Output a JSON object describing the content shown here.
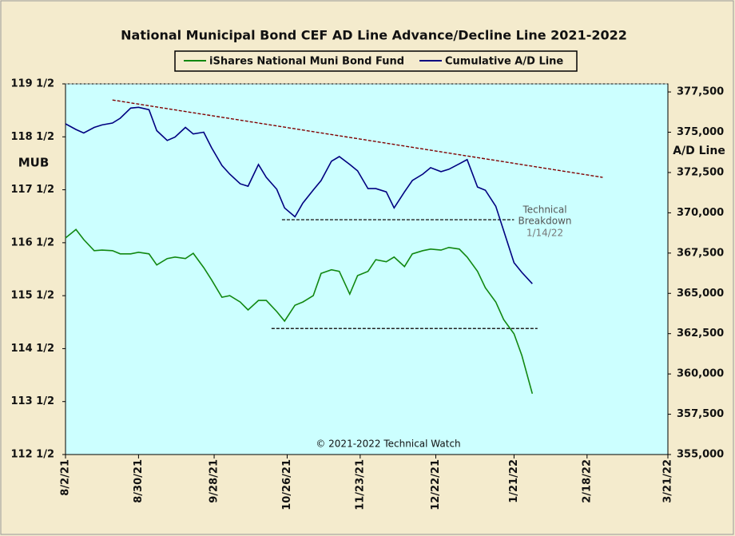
{
  "chart_data": {
    "type": "line",
    "title": "National Municipal Bond CEF AD Line Advance/Decline Line 2021-2022",
    "y_label": "MUB",
    "y2_label": "A/D Line",
    "annotations": [
      "Technical",
      "Breakdown",
      "1/14/22"
    ],
    "footer": "© 2021-2022 Technical Watch",
    "x": [
      "2021-08-02",
      "2021-08-06",
      "2021-08-09",
      "2021-08-13",
      "2021-08-16",
      "2021-08-20",
      "2021-08-23",
      "2021-08-27",
      "2021-08-30",
      "2021-09-03",
      "2021-09-06",
      "2021-09-10",
      "2021-09-13",
      "2021-09-17",
      "2021-09-20",
      "2021-09-24",
      "2021-09-27",
      "2021-10-01",
      "2021-10-04",
      "2021-10-08",
      "2021-10-11",
      "2021-10-15",
      "2021-10-18",
      "2021-10-22",
      "2021-10-25",
      "2021-10-29",
      "2021-11-01",
      "2021-11-05",
      "2021-11-08",
      "2021-11-12",
      "2021-11-15",
      "2021-11-19",
      "2021-11-22",
      "2021-11-26",
      "2021-11-29",
      "2021-12-03",
      "2021-12-06",
      "2021-12-10",
      "2021-12-13",
      "2021-12-17",
      "2021-12-20",
      "2021-12-24",
      "2021-12-27",
      "2021-12-31",
      "2022-01-03",
      "2022-01-07",
      "2022-01-10",
      "2022-01-14",
      "2022-01-17",
      "2022-01-21",
      "2022-01-24",
      "2022-01-28"
    ],
    "series": [
      {
        "name": "iShares National Muni Bond Fund",
        "color": "#118811",
        "axis": "y",
        "values": [
          116.59,
          116.75,
          116.56,
          116.35,
          116.36,
          116.35,
          116.29,
          116.29,
          116.32,
          116.29,
          116.08,
          116.2,
          116.23,
          116.2,
          116.3,
          116.03,
          115.8,
          115.47,
          115.5,
          115.38,
          115.23,
          115.41,
          115.41,
          115.2,
          115.02,
          115.32,
          115.38,
          115.5,
          115.92,
          115.99,
          115.96,
          115.53,
          115.88,
          115.96,
          116.18,
          116.14,
          116.23,
          116.05,
          116.29,
          116.35,
          116.38,
          116.36,
          116.41,
          116.38,
          116.23,
          115.96,
          115.65,
          115.38,
          115.05,
          114.78,
          114.37,
          113.65
        ]
      },
      {
        "name": "Cumulative A/D Line",
        "color": "#000080",
        "axis": "y2",
        "values": [
          375520,
          375170,
          374950,
          375300,
          375450,
          375570,
          375870,
          376500,
          376550,
          376400,
          375100,
          374490,
          374700,
          375300,
          374890,
          375000,
          374040,
          372940,
          372400,
          371800,
          371650,
          373000,
          372200,
          371460,
          370300,
          369750,
          370600,
          371410,
          372000,
          373200,
          373490,
          373000,
          372600,
          371500,
          371500,
          371300,
          370300,
          371300,
          372000,
          372400,
          372800,
          372550,
          372700,
          373040,
          373300,
          371600,
          371400,
          370400,
          368900,
          366900,
          366300,
          365600
        ]
      }
    ],
    "trendlines": [
      {
        "x": [
          "2021-08-20",
          "2022-02-24"
        ],
        "values": [
          377000,
          372200
        ],
        "axis": "y2",
        "color": "#800000"
      },
      {
        "x": [
          "2021-10-24",
          "2022-01-21"
        ],
        "values": [
          369570,
          369570
        ],
        "axis": "y2",
        "color": "#222222"
      },
      {
        "x": [
          "2021-10-20",
          "2022-01-30"
        ],
        "values": [
          114.88,
          114.88
        ],
        "axis": "y",
        "color": "#222222"
      }
    ],
    "xlim": [
      "2021-08-02",
      "2022-03-21"
    ],
    "xticks": [
      {
        "value": "2021-08-02",
        "label": "8/2/21"
      },
      {
        "value": "2021-08-30",
        "label": "8/30/21"
      },
      {
        "value": "2021-09-28",
        "label": "9/28/21"
      },
      {
        "value": "2021-10-26",
        "label": "10/26/21"
      },
      {
        "value": "2021-11-23",
        "label": "11/23/21"
      },
      {
        "value": "2021-12-22",
        "label": "12/22/21"
      },
      {
        "value": "2022-01-21",
        "label": "1/21/22"
      },
      {
        "value": "2022-02-18",
        "label": "2/18/22"
      },
      {
        "value": "2022-03-21",
        "label": "3/21/22"
      }
    ],
    "ylim": [
      112.5,
      119.5
    ],
    "yticks": [
      {
        "value": 112.5,
        "label": "112 1/2"
      },
      {
        "value": 113.5,
        "label": "113 1/2"
      },
      {
        "value": 114.5,
        "label": "114 1/2"
      },
      {
        "value": 115.5,
        "label": "115 1/2"
      },
      {
        "value": 116.5,
        "label": "116 1/2"
      },
      {
        "value": 117.5,
        "label": "117 1/2"
      },
      {
        "value": 118.5,
        "label": "118 1/2"
      },
      {
        "value": 119.5,
        "label": "119 1/2"
      }
    ],
    "y2lim": [
      355000,
      378000
    ],
    "y2ticks": [
      {
        "value": 355000,
        "label": "355,000"
      },
      {
        "value": 357500,
        "label": "357,500"
      },
      {
        "value": 360000,
        "label": "360,000"
      },
      {
        "value": 362500,
        "label": "362,500"
      },
      {
        "value": 365000,
        "label": "365,000"
      },
      {
        "value": 367500,
        "label": "367,500"
      },
      {
        "value": 370000,
        "label": "370,000"
      },
      {
        "value": 372500,
        "label": "372,500"
      },
      {
        "value": 375000,
        "label": "375,000"
      },
      {
        "value": 377500,
        "label": "377,500"
      }
    ],
    "plot_color": "#ccffff",
    "grid": false
  }
}
